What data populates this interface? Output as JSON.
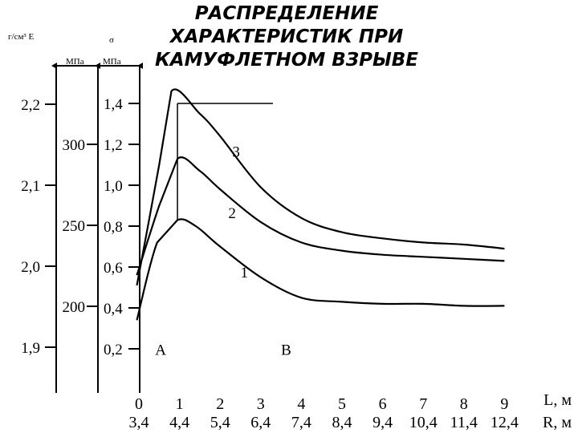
{
  "title_lines": [
    "РАСПРЕДЕЛЕНИЕ",
    "ХАРАКТЕРИСТИК ПРИ",
    "КАМУФЛЕТНОМ ВЗРЫВЕ"
  ],
  "colors": {
    "background": "#ffffff",
    "ink": "#000000"
  },
  "chart_data": {
    "type": "line",
    "title": "РАСПРЕДЕЛЕНИЕ ХАРАКТЕРИСТИК ПРИ КАМУФЛЕТНОМ ВЗРЫВЕ",
    "x": {
      "label": "L, м",
      "range": [
        0,
        9
      ],
      "ticks": [
        0,
        1,
        2,
        3,
        4,
        5,
        6,
        7,
        8,
        9
      ],
      "tick_labels": [
        "0",
        "1",
        "2",
        "3",
        "4",
        "5",
        "6",
        "7",
        "8",
        "9"
      ]
    },
    "x2": {
      "label": "R, м",
      "tick_labels": [
        "3,4",
        "4,4",
        "5,4",
        "6,4",
        "7,4",
        "8,4",
        "9,4",
        "10,4",
        "11,4",
        "12,4"
      ]
    },
    "y_axes": [
      {
        "header": "г/см³ E",
        "range": [
          1.9,
          2.2
        ],
        "ticks": [
          1.9,
          2.0,
          2.1,
          2.2
        ],
        "tick_labels": [
          "1,9",
          "2,0",
          "2,1",
          "2,2"
        ]
      },
      {
        "header": "МПа",
        "range": [
          200,
          300
        ],
        "ticks": [
          200,
          250,
          300
        ],
        "tick_labels": [
          "200",
          "250",
          "300"
        ]
      },
      {
        "header": "σ",
        "units": "МПа",
        "range": [
          0.2,
          1.4
        ],
        "ticks": [
          0.2,
          0.4,
          0.6,
          0.8,
          1.0,
          1.2,
          1.4
        ],
        "tick_labels": [
          "0,2",
          "0,4",
          "0,6",
          "0,8",
          "1,0",
          "1,2",
          "1,4"
        ]
      }
    ],
    "series": [
      {
        "name": "1",
        "x": [
          -0.05,
          0.45,
          0.95,
          1.4,
          2.0,
          3.0,
          4.0,
          5.0,
          6.0,
          7.0,
          8.0,
          9.0
        ],
        "values": [
          0.34,
          0.72,
          0.83,
          0.8,
          0.7,
          0.55,
          0.45,
          0.43,
          0.42,
          0.42,
          0.41,
          0.41
        ]
      },
      {
        "name": "2",
        "x": [
          -0.05,
          0.5,
          0.95,
          1.5,
          2.0,
          3.0,
          4.0,
          5.0,
          6.0,
          7.0,
          8.0,
          9.0
        ],
        "values": [
          0.56,
          0.9,
          1.13,
          1.07,
          0.98,
          0.82,
          0.72,
          0.68,
          0.66,
          0.65,
          0.64,
          0.63
        ]
      },
      {
        "name": "3",
        "x": [
          -0.05,
          0.5,
          0.8,
          1.5,
          2.0,
          3.0,
          4.0,
          5.0,
          6.0,
          7.0,
          8.0,
          9.0
        ],
        "values": [
          0.51,
          1.1,
          1.46,
          1.35,
          1.24,
          0.99,
          0.84,
          0.77,
          0.74,
          0.72,
          0.71,
          0.69
        ]
      }
    ],
    "series_label_at": [
      {
        "text": "1",
        "x": 2.5,
        "y": 0.55
      },
      {
        "text": "2",
        "x": 2.2,
        "y": 0.84
      },
      {
        "text": "3",
        "x": 2.3,
        "y": 1.14
      }
    ],
    "zones": [
      {
        "text": "A",
        "x": 0.4,
        "y": 0.17
      },
      {
        "text": "B",
        "x": 3.5,
        "y": 0.17
      }
    ],
    "reference_line": {
      "x_start": 0.95,
      "x_end": 3.3,
      "y": 1.4
    },
    "grid": false,
    "legend": "none"
  }
}
